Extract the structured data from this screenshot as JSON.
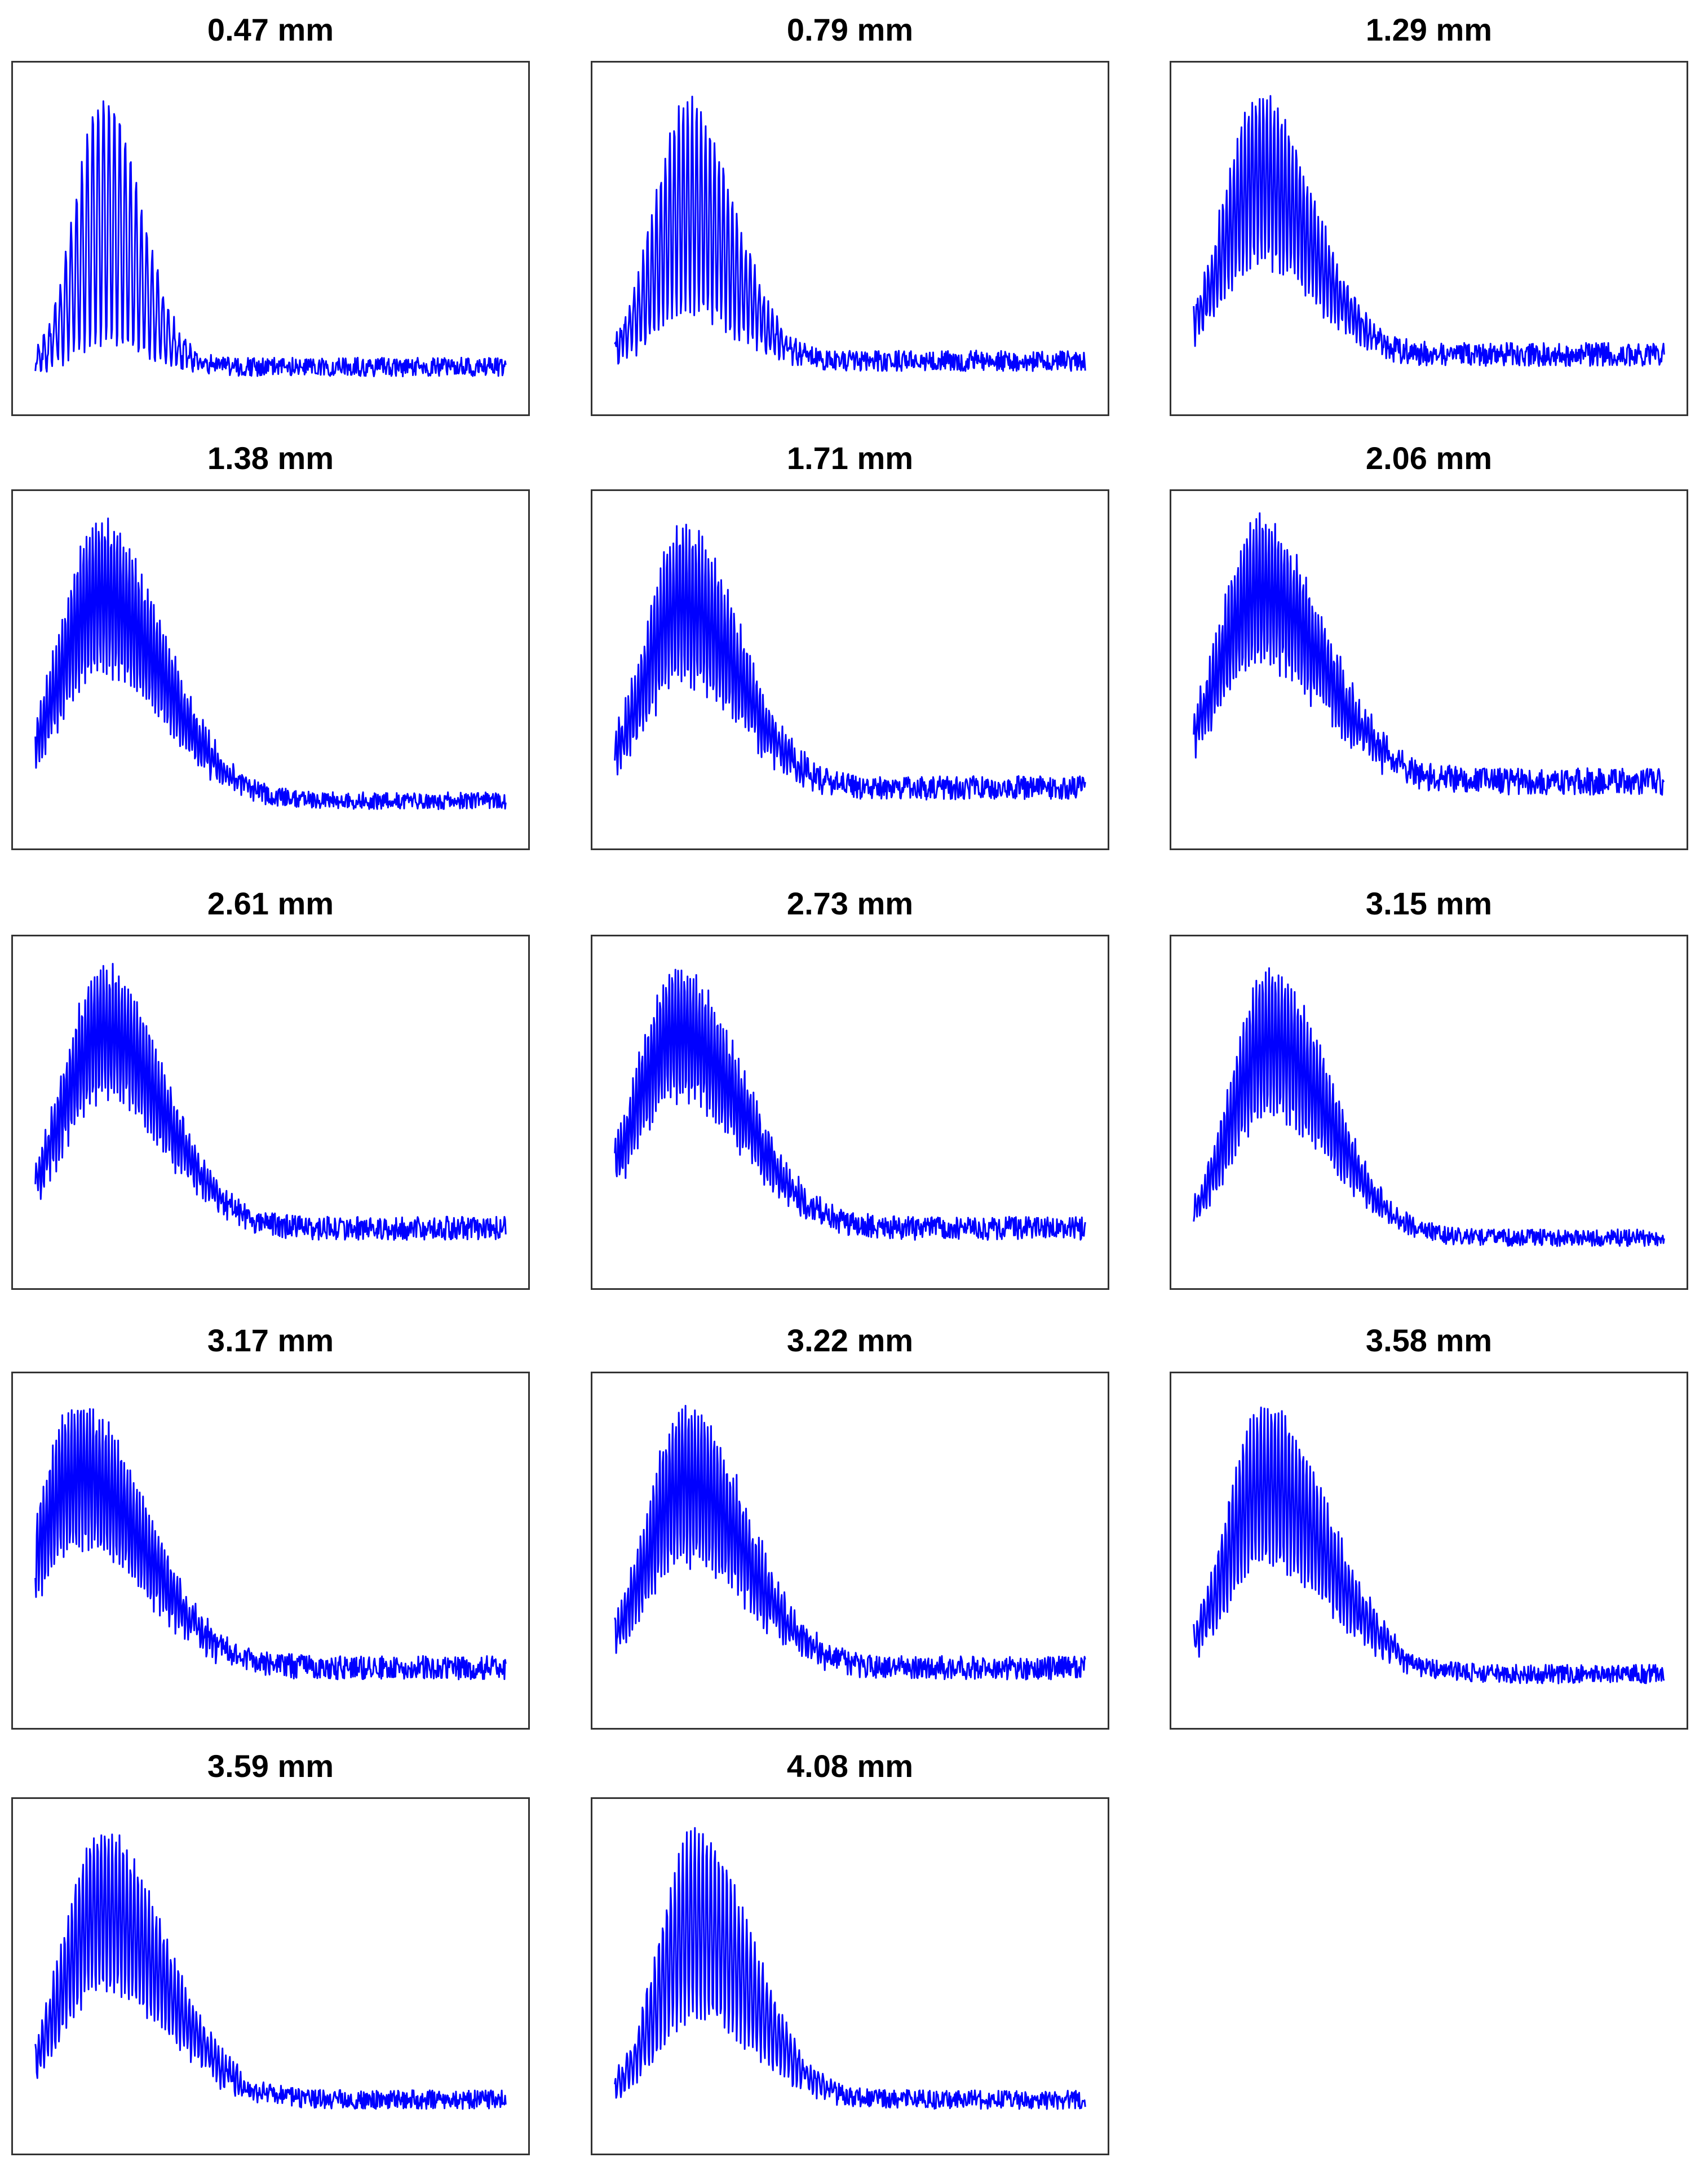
{
  "colors": {
    "trace": "#0000ff",
    "frame": "#333333",
    "background": "#ffffff"
  },
  "chart_data": [
    {
      "type": "line",
      "title": "0.47 mm",
      "xlabel": "",
      "ylabel": "",
      "grid": false,
      "axes_ticks": false,
      "signal": {
        "center": 0.145,
        "width": 0.06,
        "skew": 1.3,
        "fringe_period": 0.0115,
        "noise": 0.02,
        "baseline": 0.08,
        "peak": 0.95,
        "fringe_depth": 0.92
      }
    },
    {
      "type": "line",
      "title": "0.79 mm",
      "xlabel": "",
      "ylabel": "",
      "grid": false,
      "axes_ticks": false,
      "signal": {
        "center": 0.155,
        "width": 0.07,
        "skew": 1.4,
        "fringe_period": 0.0095,
        "noise": 0.022,
        "baseline": 0.1,
        "peak": 0.93,
        "fringe_depth": 0.82
      }
    },
    {
      "type": "line",
      "title": "1.29 mm",
      "xlabel": "",
      "ylabel": "",
      "grid": false,
      "axes_ticks": false,
      "signal": {
        "center": 0.14,
        "width": 0.075,
        "skew": 1.5,
        "fringe_period": 0.0078,
        "noise": 0.025,
        "baseline": 0.12,
        "peak": 0.96,
        "fringe_depth": 0.65
      }
    },
    {
      "type": "line",
      "title": "1.38 mm",
      "xlabel": "",
      "ylabel": "",
      "grid": false,
      "axes_ticks": false,
      "signal": {
        "center": 0.135,
        "width": 0.085,
        "skew": 1.6,
        "fringe_period": 0.0065,
        "noise": 0.018,
        "baseline": 0.08,
        "peak": 0.96,
        "fringe_depth": 0.55
      }
    },
    {
      "type": "line",
      "title": "1.71 mm",
      "xlabel": "",
      "ylabel": "",
      "grid": false,
      "axes_ticks": false,
      "signal": {
        "center": 0.145,
        "width": 0.08,
        "skew": 1.5,
        "fringe_period": 0.0068,
        "noise": 0.025,
        "baseline": 0.12,
        "peak": 0.94,
        "fringe_depth": 0.6
      }
    },
    {
      "type": "line",
      "title": "2.06 mm",
      "xlabel": "",
      "ylabel": "",
      "grid": false,
      "axes_ticks": false,
      "signal": {
        "center": 0.14,
        "width": 0.085,
        "skew": 1.6,
        "fringe_period": 0.0066,
        "noise": 0.028,
        "baseline": 0.14,
        "peak": 0.96,
        "fringe_depth": 0.55
      }
    },
    {
      "type": "line",
      "title": "2.61 mm",
      "xlabel": "",
      "ylabel": "",
      "grid": false,
      "axes_ticks": false,
      "signal": {
        "center": 0.145,
        "width": 0.085,
        "skew": 1.5,
        "fringe_period": 0.0065,
        "noise": 0.025,
        "baseline": 0.12,
        "peak": 0.96,
        "fringe_depth": 0.5
      }
    },
    {
      "type": "line",
      "title": "2.73 mm",
      "xlabel": "",
      "ylabel": "",
      "grid": false,
      "axes_ticks": false,
      "signal": {
        "center": 0.135,
        "width": 0.09,
        "skew": 1.5,
        "fringe_period": 0.0064,
        "noise": 0.025,
        "baseline": 0.12,
        "peak": 0.95,
        "fringe_depth": 0.5
      }
    },
    {
      "type": "line",
      "title": "3.15 mm",
      "xlabel": "",
      "ylabel": "",
      "grid": false,
      "axes_ticks": false,
      "signal": {
        "center": 0.16,
        "width": 0.08,
        "skew": 1.6,
        "fringe_period": 0.0068,
        "noise": 0.018,
        "baseline": 0.09,
        "peak": 0.95,
        "fringe_depth": 0.55
      }
    },
    {
      "type": "line",
      "title": "3.17 mm",
      "xlabel": "",
      "ylabel": "",
      "grid": false,
      "axes_ticks": false,
      "signal": {
        "center": 0.09,
        "width": 0.085,
        "skew": 1.7,
        "fringe_period": 0.0066,
        "noise": 0.025,
        "baseline": 0.12,
        "peak": 0.96,
        "fringe_depth": 0.55
      }
    },
    {
      "type": "line",
      "title": "3.22 mm",
      "xlabel": "",
      "ylabel": "",
      "grid": false,
      "axes_ticks": false,
      "signal": {
        "center": 0.15,
        "width": 0.08,
        "skew": 1.6,
        "fringe_period": 0.0068,
        "noise": 0.025,
        "baseline": 0.12,
        "peak": 0.96,
        "fringe_depth": 0.6
      }
    },
    {
      "type": "line",
      "title": "3.58 mm",
      "xlabel": "",
      "ylabel": "",
      "grid": false,
      "axes_ticks": false,
      "signal": {
        "center": 0.15,
        "width": 0.08,
        "skew": 1.7,
        "fringe_period": 0.0075,
        "noise": 0.02,
        "baseline": 0.1,
        "peak": 0.96,
        "fringe_depth": 0.6
      }
    },
    {
      "type": "line",
      "title": "3.59 mm",
      "xlabel": "",
      "ylabel": "",
      "grid": false,
      "axes_ticks": false,
      "signal": {
        "center": 0.14,
        "width": 0.08,
        "skew": 1.7,
        "fringe_period": 0.0078,
        "noise": 0.02,
        "baseline": 0.1,
        "peak": 0.96,
        "fringe_depth": 0.6
      }
    },
    {
      "type": "line",
      "title": "4.08 mm",
      "xlabel": "",
      "ylabel": "",
      "grid": false,
      "axes_ticks": false,
      "signal": {
        "center": 0.17,
        "width": 0.075,
        "skew": 1.6,
        "fringe_period": 0.0085,
        "noise": 0.02,
        "baseline": 0.1,
        "peak": 0.96,
        "fringe_depth": 0.7
      }
    }
  ]
}
